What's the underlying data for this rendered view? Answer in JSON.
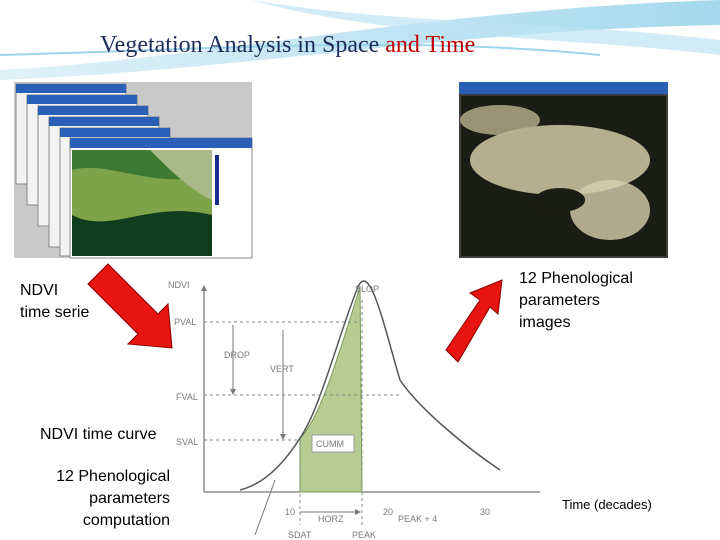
{
  "header": {
    "title_part1": "Vegetation Analysis in Space",
    "title_part2": "and Time"
  },
  "labels": {
    "ndvi_series": [
      "NDVI",
      "time serie"
    ],
    "phen_images": [
      "12 Phenological",
      "parameters",
      "images"
    ],
    "ndvi_curve": "NDVI time curve",
    "phen_computation": [
      "12 Phenological",
      "parameters",
      "computation"
    ],
    "time_axis": "Time (decades)"
  },
  "diagram": {
    "y_axis": "NDVI",
    "slop": "SLOP",
    "pval": "PVAL",
    "drop": "DROP",
    "vert": "VERT",
    "fval": "FVAL",
    "sval": "SVAL",
    "cumm": "CUMM",
    "horz": "HORZ",
    "sdat": "SDAT",
    "peak": "PEAK",
    "peak4": "PEAK + 4",
    "x_ticks": [
      "10",
      "20",
      "30"
    ]
  }
}
